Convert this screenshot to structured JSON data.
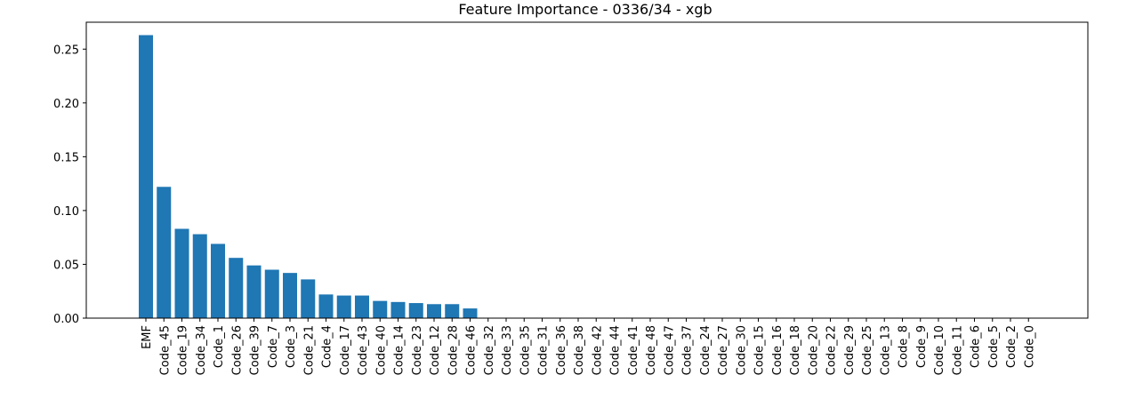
{
  "chart_data": {
    "type": "bar",
    "title": "Feature Importance - 0336/34 - xgb",
    "xlabel": "",
    "ylabel": "",
    "ylim": [
      0,
      0.275
    ],
    "yticks": [
      "0.00",
      "0.05",
      "0.10",
      "0.15",
      "0.20",
      "0.25"
    ],
    "grid": false,
    "bar_color": "#1f77b4",
    "categories": [
      "EMF",
      "Code_45",
      "Code_19",
      "Code_34",
      "Code_1",
      "Code_26",
      "Code_39",
      "Code_7",
      "Code_3",
      "Code_21",
      "Code_4",
      "Code_17",
      "Code_43",
      "Code_40",
      "Code_14",
      "Code_23",
      "Code_12",
      "Code_28",
      "Code_46",
      "Code_32",
      "Code_33",
      "Code_35",
      "Code_31",
      "Code_36",
      "Code_38",
      "Code_42",
      "Code_44",
      "Code_41",
      "Code_48",
      "Code_47",
      "Code_37",
      "Code_24",
      "Code_27",
      "Code_30",
      "Code_15",
      "Code_16",
      "Code_18",
      "Code_20",
      "Code_22",
      "Code_29",
      "Code_25",
      "Code_13",
      "Code_8",
      "Code_9",
      "Code_10",
      "Code_11",
      "Code_6",
      "Code_5",
      "Code_2",
      "Code_0"
    ],
    "values": [
      0.263,
      0.122,
      0.083,
      0.078,
      0.069,
      0.056,
      0.049,
      0.045,
      0.042,
      0.036,
      0.022,
      0.021,
      0.021,
      0.016,
      0.015,
      0.014,
      0.013,
      0.013,
      0.009,
      0.0,
      0.0,
      0.0,
      0.0,
      0.0,
      0.0,
      0.0,
      0.0,
      0.0,
      0.0,
      0.0,
      0.0,
      0.0,
      0.0,
      0.0,
      0.0,
      0.0,
      0.0,
      0.0,
      0.0,
      0.0,
      0.0,
      0.0,
      0.0,
      0.0,
      0.0,
      0.0,
      0.0,
      0.0,
      0.0,
      0.0
    ]
  }
}
